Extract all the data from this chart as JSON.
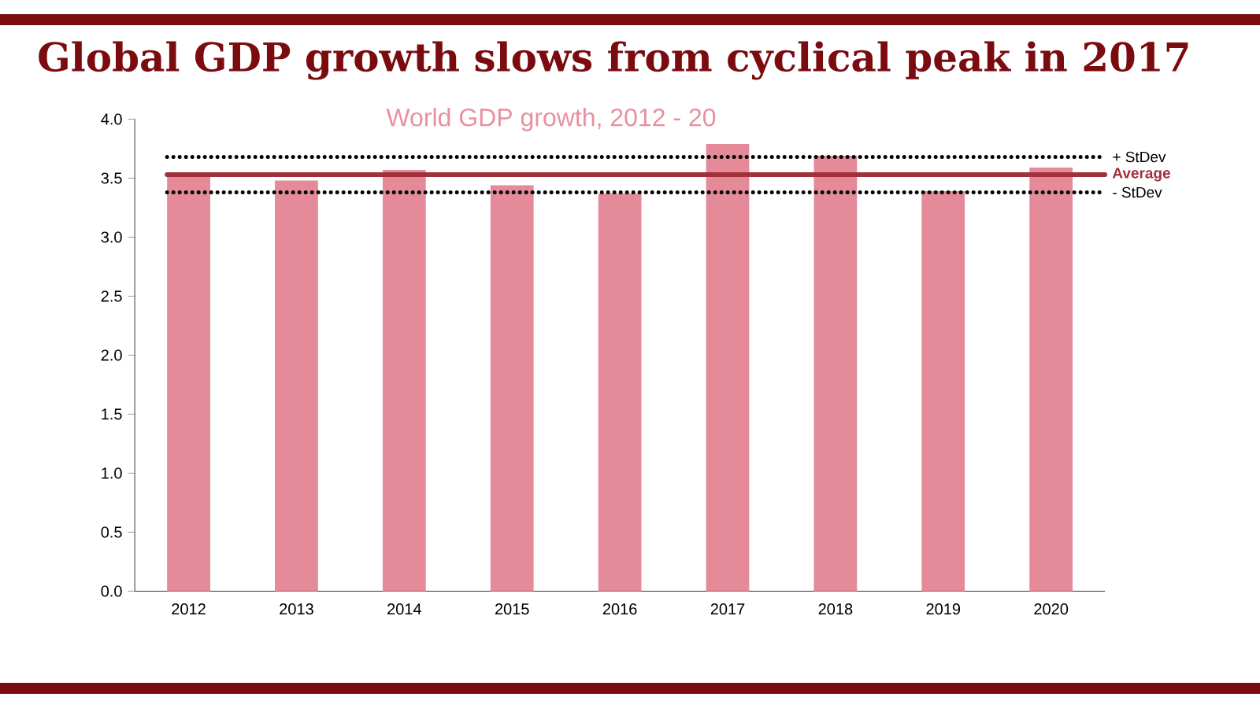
{
  "chart_data": {
    "type": "bar",
    "title": "Global GDP growth slows from cyclical peak in 2017",
    "subtitle": "World GDP growth, 2012 - 20",
    "categories": [
      "2012",
      "2013",
      "2014",
      "2015",
      "2016",
      "2017",
      "2018",
      "2019",
      "2020"
    ],
    "values": [
      3.51,
      3.48,
      3.57,
      3.44,
      3.37,
      3.79,
      3.69,
      3.39,
      3.59
    ],
    "color": "#e48a98",
    "ylim": [
      0,
      4
    ],
    "yticks": [
      {
        "value": 0,
        "label": "0.0"
      },
      {
        "value": 0.5,
        "label": "0.5"
      },
      {
        "value": 1,
        "label": "1.0"
      },
      {
        "value": 1.5,
        "label": "1.5"
      },
      {
        "value": 2,
        "label": "2.0"
      },
      {
        "value": 2.5,
        "label": "2.5"
      },
      {
        "value": 3,
        "label": "3.0"
      },
      {
        "value": 3.5,
        "label": "3.5"
      },
      {
        "value": 4,
        "label": "4.0"
      }
    ],
    "ref_lines": [
      {
        "axis": "y",
        "value": 3.68,
        "label": "+ StDev",
        "color": "#000000",
        "line_style": "dotted"
      },
      {
        "axis": "y",
        "value": 3.53,
        "label": "Average",
        "color": "#a0303a",
        "line_style": "solid"
      },
      {
        "axis": "y",
        "value": 3.38,
        "label": "- StDev",
        "color": "#000000",
        "line_style": "dotted"
      }
    ]
  }
}
